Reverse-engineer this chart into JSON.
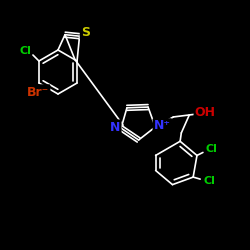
{
  "background": "#000000",
  "bond_color": "#ffffff",
  "bond_width": 1.2,
  "figsize": [
    2.5,
    2.5
  ],
  "dpi": 100,
  "atoms": {
    "Cl_top": {
      "label": "Cl",
      "color": "#00cc00"
    },
    "S": {
      "label": "S",
      "color": "#cccc00"
    },
    "Br": {
      "label": "Br⁻",
      "color": "#cc3300"
    },
    "N": {
      "label": "N",
      "color": "#3333ff"
    },
    "Np": {
      "label": "N⁺",
      "color": "#3333ff"
    },
    "OH": {
      "label": "OH",
      "color": "#cc0000"
    },
    "Cl_mid": {
      "label": "Cl",
      "color": "#00cc00"
    },
    "Cl_bot": {
      "label": "Cl",
      "color": "#00cc00"
    }
  }
}
